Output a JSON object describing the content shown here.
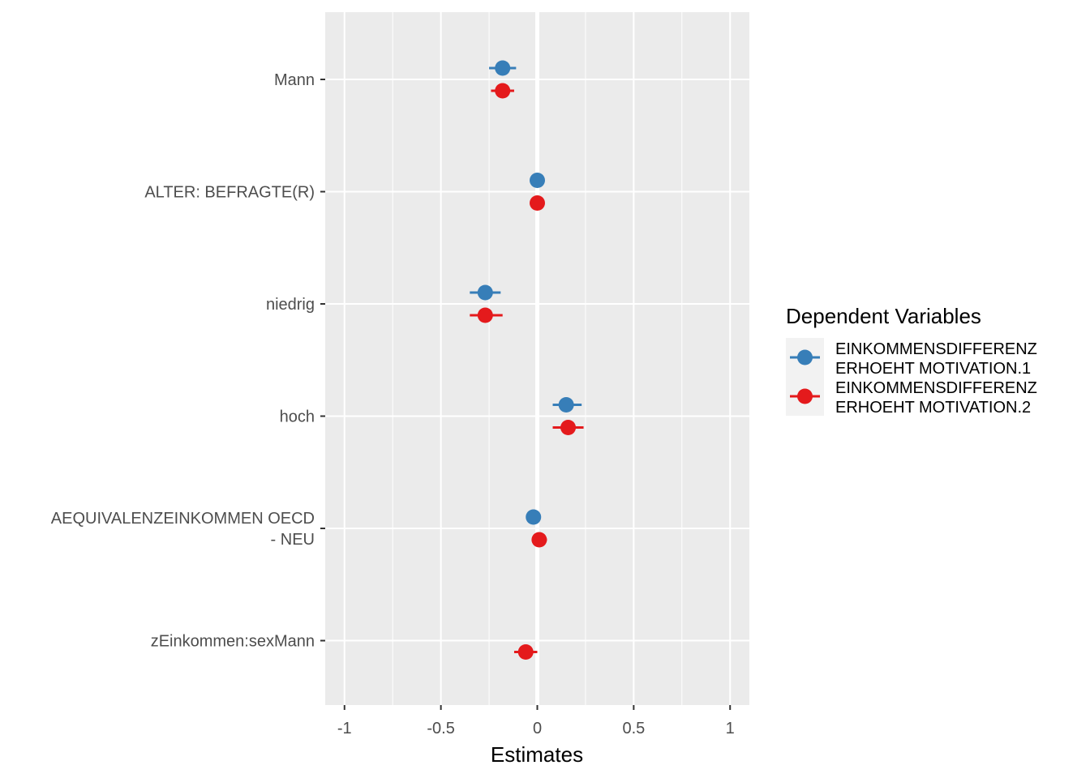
{
  "chart_data": {
    "type": "scatter",
    "subtype": "coefficient-plot-with-error-bars",
    "xlabel": "Estimates",
    "x_ticks": [
      "-1",
      "-0.5",
      "0",
      "0.5",
      "1"
    ],
    "x_tick_values": [
      -1,
      -0.5,
      0,
      0.5,
      1
    ],
    "xlim": [
      -1.1,
      1.1
    ],
    "zero_line": 0,
    "grid": true,
    "legend_position": "right",
    "legend_title": "Dependent Variables",
    "categories": [
      [
        "Mann"
      ],
      [
        "ALTER: BEFRAGTE(R)"
      ],
      [
        "niedrig"
      ],
      [
        "hoch"
      ],
      [
        "AEQUIVALENZEINKOMMEN OECD",
        "- NEU"
      ],
      [
        "zEinkommen:sexMann"
      ]
    ],
    "series": [
      {
        "name": [
          "EINKOMMENSDIFFERENZ",
          "ERHOEHT MOTIVATION.1"
        ],
        "color": "#377eb8",
        "values": [
          -0.18,
          0.0,
          -0.27,
          0.15,
          -0.02,
          null
        ],
        "ci_low": [
          -0.25,
          -0.01,
          -0.35,
          0.08,
          -0.04,
          null
        ],
        "ci_high": [
          -0.11,
          0.01,
          -0.19,
          0.23,
          0.0,
          null
        ]
      },
      {
        "name": [
          "EINKOMMENSDIFFERENZ",
          "ERHOEHT MOTIVATION.2"
        ],
        "color": "#e41a1c",
        "values": [
          -0.18,
          0.0,
          -0.27,
          0.16,
          0.01,
          -0.06
        ],
        "ci_low": [
          -0.24,
          -0.01,
          -0.35,
          0.08,
          -0.02,
          -0.12
        ],
        "ci_high": [
          -0.12,
          0.01,
          -0.18,
          0.24,
          0.05,
          0.0
        ]
      }
    ]
  }
}
